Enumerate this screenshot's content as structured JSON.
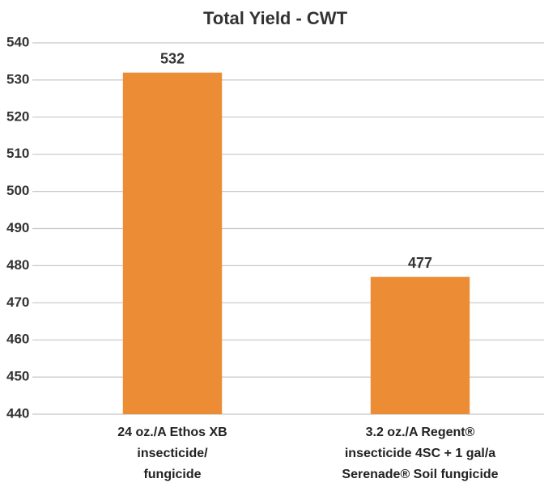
{
  "chart_data": {
    "type": "bar",
    "title": "Total Yield - CWT",
    "categories": [
      "24 oz./A Ethos XB\ninsecticide/\nfungicide",
      "3.2 oz./A Regent®\ninsecticide 4SC + 1 gal/a\nSerenade® Soil fungicide"
    ],
    "values": [
      532,
      477
    ],
    "color": "#ec8d35",
    "ylim": [
      440,
      540
    ],
    "yticks": [
      440,
      450,
      460,
      470,
      480,
      490,
      500,
      510,
      520,
      530,
      540
    ],
    "grid": true
  }
}
